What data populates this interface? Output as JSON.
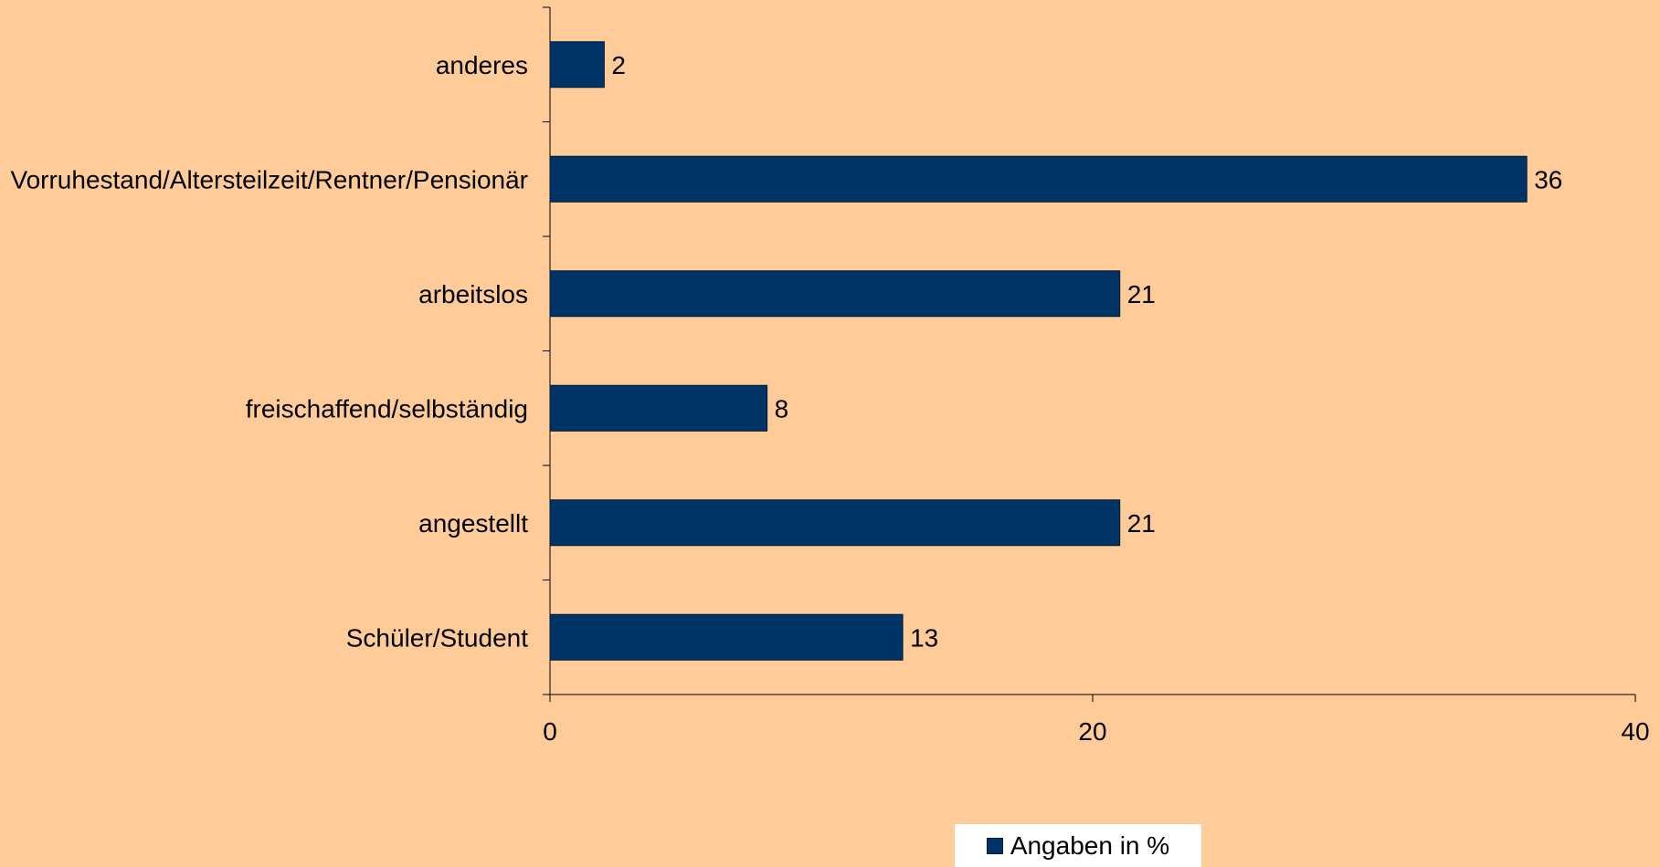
{
  "chart_data": {
    "type": "bar",
    "orientation": "horizontal",
    "categories": [
      "anderes",
      "Vorruhestand/Altersteilzeit/Rentner/Pensionär",
      "arbeitslos",
      "freischaffend/selbständig",
      "angestellt",
      "Schüler/Student"
    ],
    "series": [
      {
        "name": "Angaben in %",
        "values": [
          2,
          36,
          21,
          8,
          21,
          13
        ]
      }
    ],
    "value_labels": [
      "2",
      "36",
      "21",
      "8",
      "21",
      "13"
    ],
    "x_ticks": [
      "0",
      "20",
      "40"
    ],
    "xlim": [
      0,
      40
    ],
    "grid": false,
    "legend_position": "bottom",
    "bar_color": "#003366",
    "background_color": "#ffcc99"
  }
}
